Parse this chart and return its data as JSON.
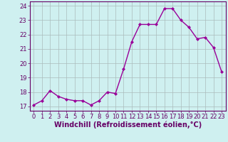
{
  "x": [
    0,
    1,
    2,
    3,
    4,
    5,
    6,
    7,
    8,
    9,
    10,
    11,
    12,
    13,
    14,
    15,
    16,
    17,
    18,
    19,
    20,
    21,
    22,
    23
  ],
  "y": [
    17.1,
    17.4,
    18.1,
    17.7,
    17.5,
    17.4,
    17.4,
    17.1,
    17.4,
    18.0,
    17.9,
    19.6,
    21.5,
    22.7,
    22.7,
    22.7,
    23.8,
    23.8,
    23.0,
    22.5,
    21.7,
    21.8,
    21.1,
    19.4
  ],
  "line_color": "#990099",
  "marker": "D",
  "marker_size": 2,
  "bg_color": "#cff0f0",
  "grid_color": "#aabbbb",
  "ylabel_ticks": [
    17,
    18,
    19,
    20,
    21,
    22,
    23,
    24
  ],
  "xtick_labels": [
    "0",
    "1",
    "2",
    "3",
    "4",
    "5",
    "6",
    "7",
    "8",
    "9",
    "10",
    "11",
    "12",
    "13",
    "14",
    "15",
    "16",
    "17",
    "18",
    "19",
    "20",
    "21",
    "22",
    "23"
  ],
  "xlabel": "Windchill (Refroidissement éolien,°C)",
  "xlim": [
    -0.5,
    23.5
  ],
  "ylim": [
    16.7,
    24.3
  ],
  "axis_color": "#660066",
  "tick_color": "#660066",
  "xlabel_color": "#660066",
  "grid_linewidth": 0.5,
  "line_width": 1.0,
  "tick_fontsize": 6,
  "xlabel_fontsize": 7
}
